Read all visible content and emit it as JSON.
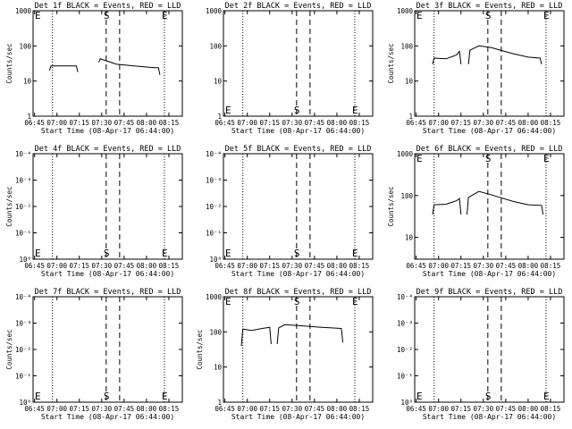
{
  "chart_data": [
    {
      "type": "line",
      "title": "Det 1f BLACK = Events, RED = LLD",
      "xlabel": "Start Time (08-Apr-17 06:44:00)",
      "ylabel": "Counts/sec",
      "x_ticks": [
        "06:45",
        "07:00",
        "07:15",
        "07:30",
        "07:45",
        "08:00",
        "08:15"
      ],
      "y_ticks": [
        "1",
        "10",
        "100",
        "1000"
      ],
      "y_scale": "log",
      "ylim": [
        1,
        1000
      ],
      "xlim": [
        "06:44",
        "08:24"
      ],
      "markers": [
        {
          "label": "E",
          "position": "top"
        },
        {
          "label": "S",
          "position": "top"
        },
        {
          "label": "E",
          "position": "top"
        }
      ],
      "series": [
        {
          "points": [
            [
              "06:55",
              20
            ],
            [
              "06:56",
              27
            ],
            [
              "07:05",
              27
            ],
            [
              "07:13",
              27
            ],
            [
              "07:14",
              18
            ]
          ]
        },
        {
          "points": [
            [
              "07:28",
              34
            ],
            [
              "07:29",
              43
            ],
            [
              "07:40",
              30
            ],
            [
              "07:55",
              26
            ],
            [
              "08:05",
              24
            ],
            [
              "08:08",
              24
            ],
            [
              "08:09",
              15
            ]
          ]
        }
      ]
    },
    {
      "type": "line",
      "title": "Det 2f BLACK = Events, RED = LLD",
      "xlabel": "Start Time (08-Apr-17 06:44:00)",
      "ylabel": "",
      "x_ticks": [
        "06:45",
        "07:00",
        "07:15",
        "07:30",
        "07:45",
        "08:00",
        "08:15"
      ],
      "y_ticks": [
        "1",
        "10",
        "100",
        "1000"
      ],
      "y_scale": "log",
      "ylim": [
        1,
        1000
      ],
      "xlim": [
        "06:44",
        "08:24"
      ],
      "markers": [
        {
          "label": "E",
          "position": "bottom"
        },
        {
          "label": "S",
          "position": "bottom"
        },
        {
          "label": "E",
          "position": "bottom"
        }
      ],
      "series": []
    },
    {
      "type": "line",
      "title": "Det 3f BLACK = Events, RED = LLD",
      "xlabel": "Start Time (08-Apr-17 06:44:00)",
      "ylabel": "Counts/sec",
      "x_ticks": [
        "06:45",
        "07:00",
        "07:15",
        "07:30",
        "07:45",
        "08:00",
        "08:15"
      ],
      "y_ticks": [
        "1",
        "10",
        "100",
        "1000"
      ],
      "y_scale": "log",
      "ylim": [
        1,
        1000
      ],
      "xlim": [
        "06:44",
        "08:24"
      ],
      "markers": [
        {
          "label": "E",
          "position": "top"
        },
        {
          "label": "S",
          "position": "top"
        },
        {
          "label": "E",
          "position": "top"
        }
      ],
      "series": [
        {
          "points": [
            [
              "06:56",
              30
            ],
            [
              "06:57",
              45
            ],
            [
              "07:05",
              43
            ],
            [
              "07:12",
              55
            ],
            [
              "07:14",
              70
            ],
            [
              "07:15",
              30
            ]
          ]
        },
        {
          "points": [
            [
              "07:20",
              30
            ],
            [
              "07:21",
              75
            ],
            [
              "07:27",
              100
            ],
            [
              "07:35",
              90
            ],
            [
              "07:50",
              60
            ],
            [
              "08:00",
              48
            ],
            [
              "08:08",
              45
            ],
            [
              "08:09",
              30
            ]
          ]
        }
      ]
    },
    {
      "type": "line",
      "title": "Det 4f BLACK = Events, RED = LLD",
      "xlabel": "Start Time (08-Apr-17 06:44:00)",
      "ylabel": "Counts/sec",
      "x_ticks": [
        "06:45",
        "07:00",
        "07:15",
        "07:30",
        "07:45",
        "08:00",
        "08:15"
      ],
      "y_ticks": [
        "10⁰",
        "10⁻¹",
        "10⁻²",
        "10⁻³",
        "10⁻⁴"
      ],
      "y_scale": "log",
      "ylim": [
        1,
        0.0001
      ],
      "xlim": [
        "06:44",
        "08:24"
      ],
      "markers": [
        {
          "label": "E",
          "position": "bottom"
        },
        {
          "label": "S",
          "position": "bottom"
        },
        {
          "label": "E",
          "position": "bottom"
        }
      ],
      "series": []
    },
    {
      "type": "line",
      "title": "Det 5f BLACK = Events, RED = LLD",
      "xlabel": "Start Time (08-Apr-17 06:44:00)",
      "ylabel": "",
      "x_ticks": [
        "06:45",
        "07:00",
        "07:15",
        "07:30",
        "07:45",
        "08:00",
        "08:15"
      ],
      "y_ticks": [
        "10⁰",
        "10⁻¹",
        "10⁻²",
        "10⁻³",
        "10⁻⁴"
      ],
      "y_scale": "log",
      "ylim": [
        1,
        0.0001
      ],
      "xlim": [
        "06:44",
        "08:24"
      ],
      "markers": [
        {
          "label": "E",
          "position": "bottom"
        },
        {
          "label": "S",
          "position": "bottom"
        },
        {
          "label": "E",
          "position": "bottom"
        }
      ],
      "series": []
    },
    {
      "type": "line",
      "title": "Det 6f BLACK = Events, RED = LLD",
      "xlabel": "Start Time (08-Apr-17 06:44:00)",
      "ylabel": "Counts/sec",
      "x_ticks": [
        "06:45",
        "07:00",
        "07:15",
        "07:30",
        "07:45",
        "08:00",
        "08:15"
      ],
      "y_ticks": [
        "10",
        "100",
        "1000"
      ],
      "y_scale": "log",
      "ylim": [
        3,
        1000
      ],
      "xlim": [
        "06:44",
        "08:24"
      ],
      "markers": [
        {
          "label": "E",
          "position": "top"
        },
        {
          "label": "S",
          "position": "top"
        },
        {
          "label": "E",
          "position": "top"
        }
      ],
      "series": [
        {
          "points": [
            [
              "06:56",
              35
            ],
            [
              "06:57",
              60
            ],
            [
              "07:05",
              62
            ],
            [
              "07:12",
              75
            ],
            [
              "07:14",
              85
            ],
            [
              "07:15",
              35
            ]
          ]
        },
        {
          "points": [
            [
              "07:19",
              35
            ],
            [
              "07:20",
              90
            ],
            [
              "07:27",
              125
            ],
            [
              "07:35",
              105
            ],
            [
              "07:50",
              72
            ],
            [
              "08:00",
              60
            ],
            [
              "08:09",
              58
            ],
            [
              "08:10",
              35
            ]
          ]
        }
      ]
    },
    {
      "type": "line",
      "title": "Det 7f BLACK = Events, RED = LLD",
      "xlabel": "Start Time (08-Apr-17 06:44:00)",
      "ylabel": "Counts/sec",
      "x_ticks": [
        "06:45",
        "07:00",
        "07:15",
        "07:30",
        "07:45",
        "08:00",
        "08:15"
      ],
      "y_ticks": [
        "10⁰",
        "10⁻¹",
        "10⁻²",
        "10⁻³",
        "10⁻⁴"
      ],
      "y_scale": "log",
      "ylim": [
        1,
        0.0001
      ],
      "xlim": [
        "06:44",
        "08:24"
      ],
      "markers": [
        {
          "label": "E",
          "position": "bottom"
        },
        {
          "label": "S",
          "position": "bottom"
        },
        {
          "label": "E",
          "position": "bottom"
        }
      ],
      "series": []
    },
    {
      "type": "line",
      "title": "Det 8f BLACK = Events, RED = LLD",
      "xlabel": "Start Time (08-Apr-17 06:44:00)",
      "ylabel": "Counts/sec",
      "x_ticks": [
        "06:45",
        "07:00",
        "07:15",
        "07:30",
        "07:45",
        "08:00",
        "08:15"
      ],
      "y_ticks": [
        "1",
        "10",
        "100",
        "1000"
      ],
      "y_scale": "log",
      "ylim": [
        1,
        1000
      ],
      "xlim": [
        "06:44",
        "08:24"
      ],
      "markers": [
        {
          "label": "E",
          "position": "top"
        },
        {
          "label": "S",
          "position": "top"
        },
        {
          "label": "E",
          "position": "top"
        }
      ],
      "series": [
        {
          "points": [
            [
              "06:56",
              40
            ],
            [
              "06:57",
              120
            ],
            [
              "07:03",
              110
            ],
            [
              "07:10",
              125
            ],
            [
              "07:15",
              135
            ],
            [
              "07:16",
              45
            ]
          ]
        },
        {
          "points": [
            [
              "07:20",
              45
            ],
            [
              "07:21",
              130
            ],
            [
              "07:25",
              160
            ],
            [
              "07:35",
              150
            ],
            [
              "07:50",
              135
            ],
            [
              "08:03",
              125
            ],
            [
              "08:04",
              50
            ]
          ]
        }
      ]
    },
    {
      "type": "line",
      "title": "Det 9f BLACK = Events, RED = LLD",
      "xlabel": "Start Time (08-Apr-17 06:44:00)",
      "ylabel": "",
      "x_ticks": [
        "06:45",
        "07:00",
        "07:15",
        "07:30",
        "07:45",
        "08:00",
        "08:15"
      ],
      "y_ticks": [
        "10⁰",
        "10⁻¹",
        "10⁻²",
        "10⁻³",
        "10⁻⁴"
      ],
      "y_scale": "log",
      "ylim": [
        1,
        0.0001
      ],
      "xlim": [
        "06:44",
        "08:24"
      ],
      "markers": [
        {
          "label": "E",
          "position": "bottom"
        },
        {
          "label": "S",
          "position": "bottom"
        },
        {
          "label": "E",
          "position": "bottom"
        }
      ],
      "series": []
    }
  ]
}
